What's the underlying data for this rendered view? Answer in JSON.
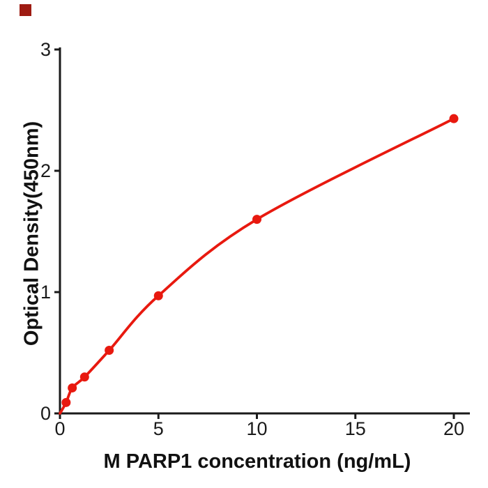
{
  "figure": {
    "background": "#ffffff",
    "brand_square_color": "#9e1b12"
  },
  "chart_data": {
    "type": "line",
    "title": "",
    "xlabel": "M PARP1 concentration (ng/mL)",
    "ylabel": "Optical Density(450nm)",
    "x": [
      0.313,
      0.625,
      1.25,
      2.5,
      5,
      10,
      20
    ],
    "y": [
      0.09,
      0.21,
      0.3,
      0.52,
      0.97,
      1.6,
      2.43
    ],
    "curve_starts_at_origin": true,
    "x_ticks": [
      0,
      5,
      10,
      15,
      20
    ],
    "y_ticks": [
      0,
      1,
      2,
      3
    ],
    "xlim": [
      0,
      20
    ],
    "ylim": [
      0,
      3
    ],
    "grid": false,
    "legend": null,
    "line_color": "#e8190f",
    "marker_color": "#e8190f",
    "axis_color": "#1a1a1a"
  }
}
